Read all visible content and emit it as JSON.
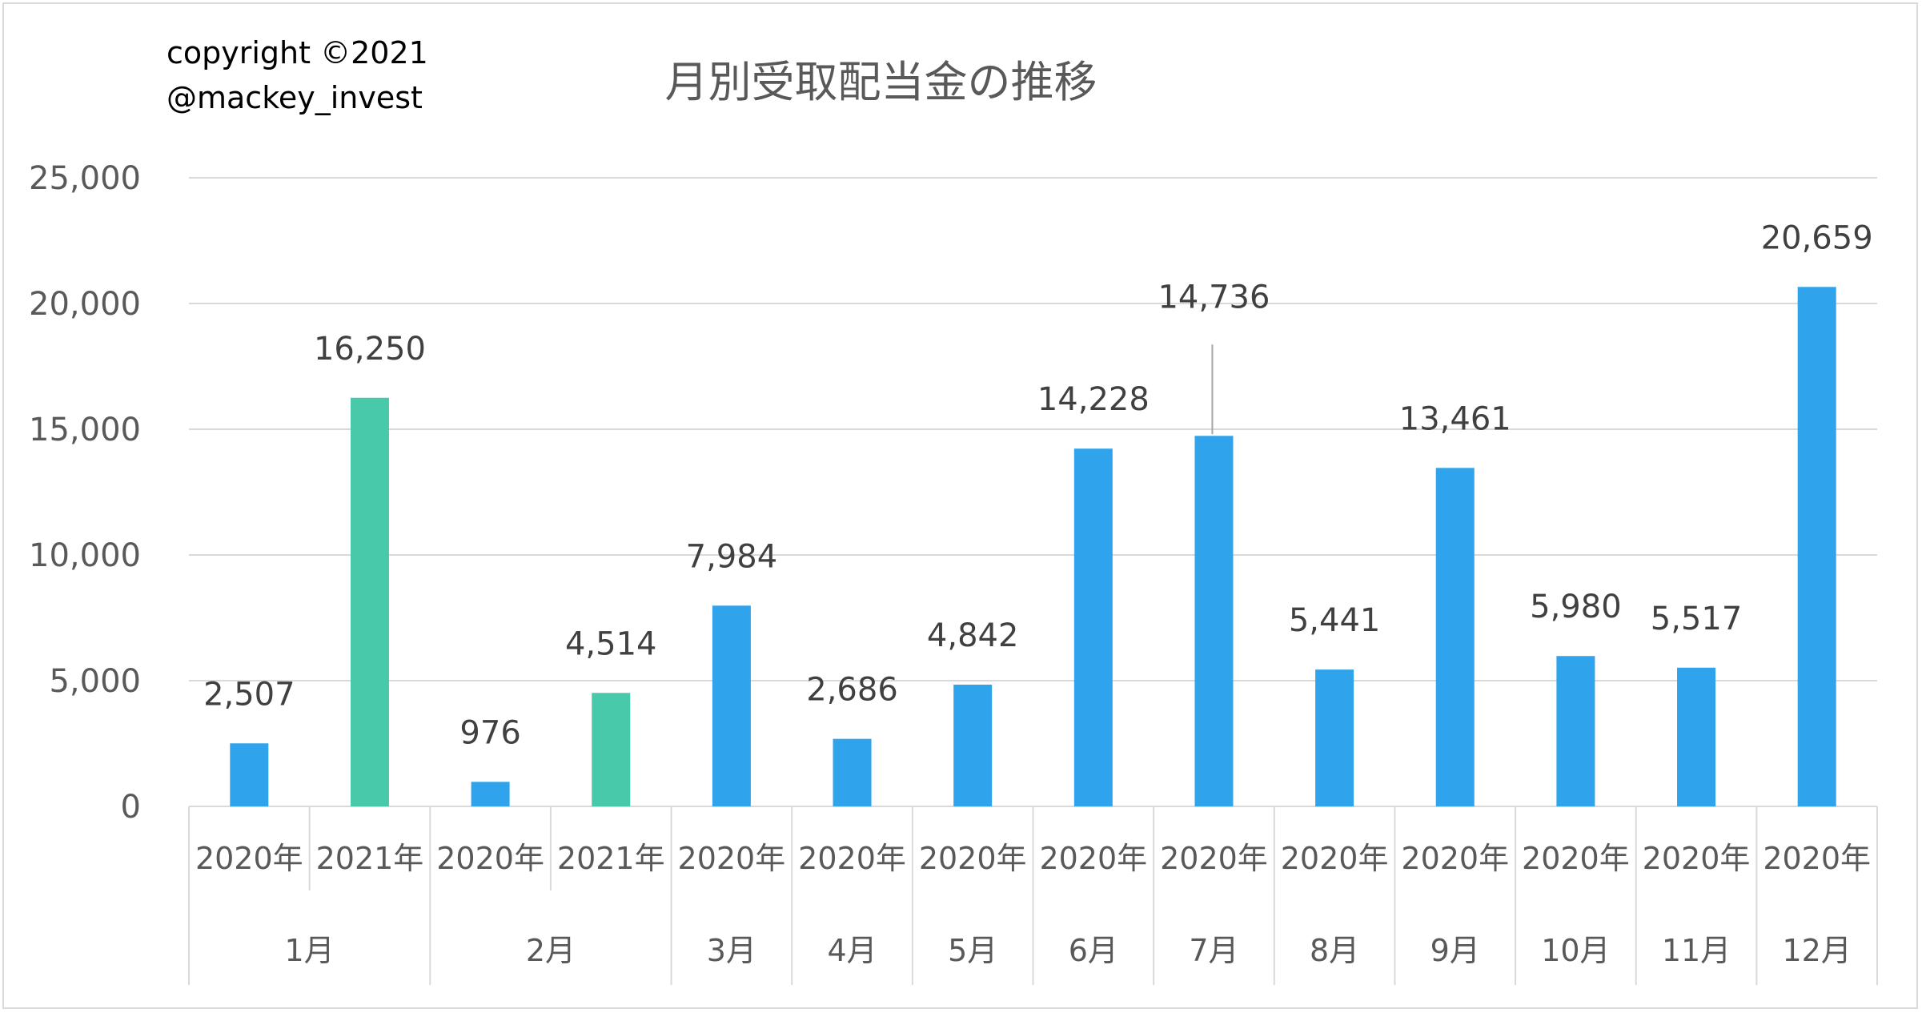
{
  "copyright": {
    "line1": "copyright ©2021",
    "line2": "@mackey_invest"
  },
  "colors": {
    "bar_2020": "#2fa3ec",
    "bar_2021": "#48c9aa",
    "grid": "#d9d9d9",
    "text": "#595959"
  },
  "chart_data": {
    "type": "bar",
    "title": "月別受取配当金の推移",
    "ylim": [
      0,
      25000
    ],
    "yticks": [
      "0",
      "5,000",
      "10,000",
      "15,000",
      "20,000",
      "25,000"
    ],
    "grid": true,
    "legend": "none",
    "categories": [
      {
        "year": "2020年",
        "month": "1月",
        "value": 2507,
        "label": "2,507",
        "series": "2020"
      },
      {
        "year": "2021年",
        "month": "1月",
        "value": 16250,
        "label": "16,250",
        "series": "2021"
      },
      {
        "year": "2020年",
        "month": "2月",
        "value": 976,
        "label": "976",
        "series": "2020"
      },
      {
        "year": "2021年",
        "month": "2月",
        "value": 4514,
        "label": "4,514",
        "series": "2021"
      },
      {
        "year": "2020年",
        "month": "3月",
        "value": 7984,
        "label": "7,984",
        "series": "2020"
      },
      {
        "year": "2020年",
        "month": "4月",
        "value": 2686,
        "label": "2,686",
        "series": "2020"
      },
      {
        "year": "2020年",
        "month": "5月",
        "value": 4842,
        "label": "4,842",
        "series": "2020"
      },
      {
        "year": "2020年",
        "month": "6月",
        "value": 14228,
        "label": "14,228",
        "series": "2020"
      },
      {
        "year": "2020年",
        "month": "7月",
        "value": 14736,
        "label": "14,736",
        "series": "2020"
      },
      {
        "year": "2020年",
        "month": "8月",
        "value": 5441,
        "label": "5,441",
        "series": "2020"
      },
      {
        "year": "2020年",
        "month": "9月",
        "value": 13461,
        "label": "13,461",
        "series": "2020"
      },
      {
        "year": "2020年",
        "month": "10月",
        "value": 5980,
        "label": "5,980",
        "series": "2020"
      },
      {
        "year": "2020年",
        "month": "11月",
        "value": 5517,
        "label": "5,517",
        "series": "2020"
      },
      {
        "year": "2020年",
        "month": "12月",
        "value": 20659,
        "label": "20,659",
        "series": "2020"
      }
    ],
    "month_groups": [
      {
        "month": "1月",
        "span": 2
      },
      {
        "month": "2月",
        "span": 2
      },
      {
        "month": "3月",
        "span": 1
      },
      {
        "month": "4月",
        "span": 1
      },
      {
        "month": "5月",
        "span": 1
      },
      {
        "month": "6月",
        "span": 1
      },
      {
        "month": "7月",
        "span": 1
      },
      {
        "month": "8月",
        "span": 1
      },
      {
        "month": "9月",
        "span": 1
      },
      {
        "month": "10月",
        "span": 1
      },
      {
        "month": "11月",
        "span": 1
      },
      {
        "month": "12月",
        "span": 1
      }
    ]
  }
}
